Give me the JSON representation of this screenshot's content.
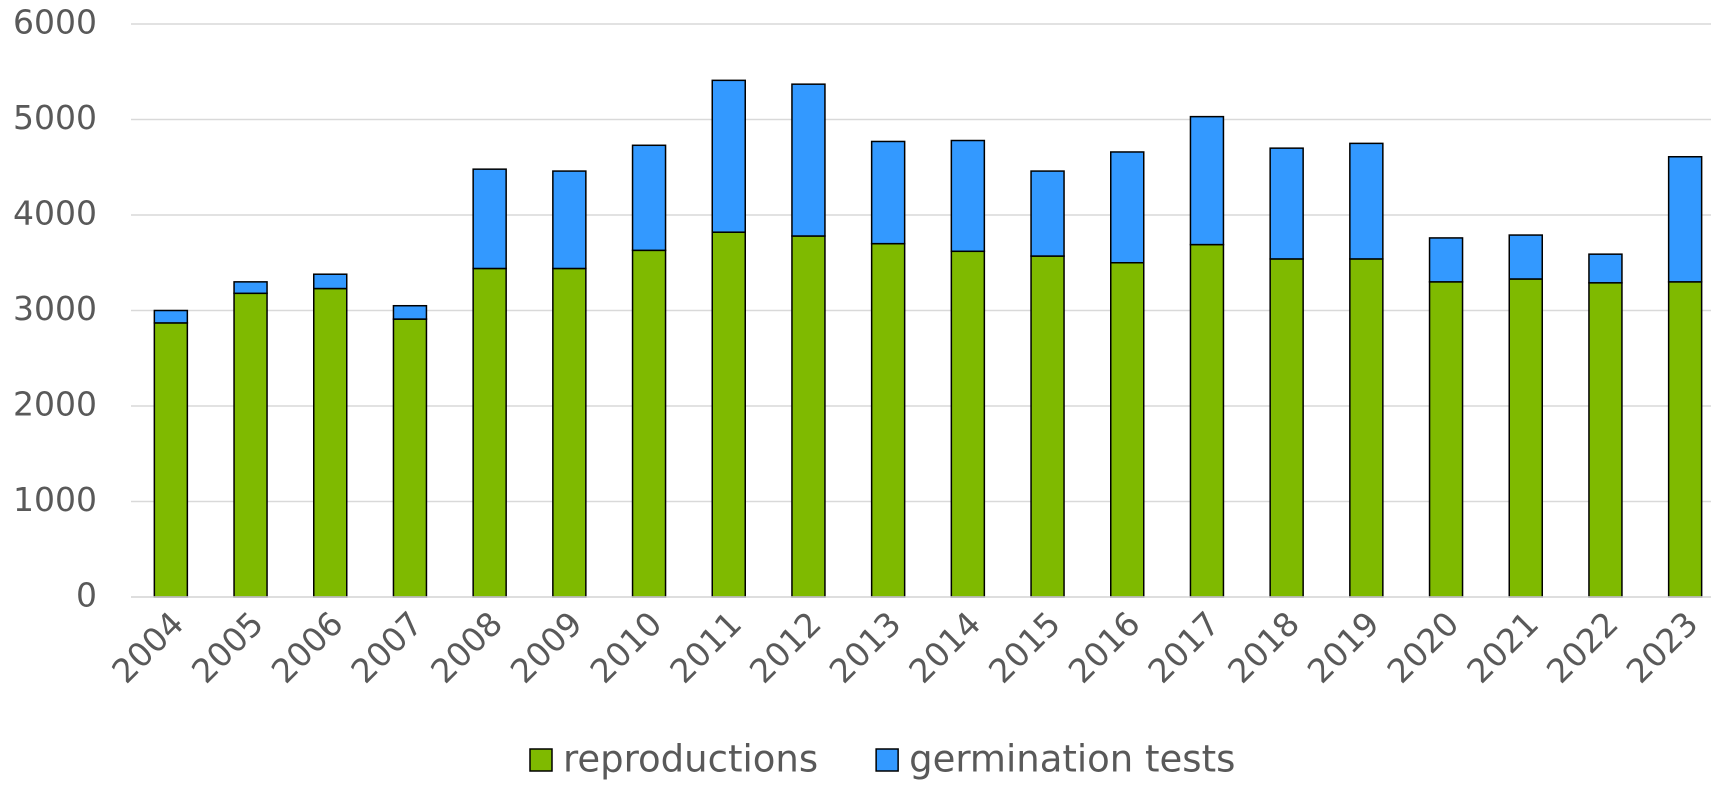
{
  "chart_data": {
    "type": "stacked_bar",
    "categories": [
      "2004",
      "2005",
      "2006",
      "2007",
      "2008",
      "2009",
      "2010",
      "2011",
      "2012",
      "2013",
      "2014",
      "2015",
      "2016",
      "2017",
      "2018",
      "2019",
      "2020",
      "2021",
      "2022",
      "2023"
    ],
    "series": [
      {
        "name": "reproductions",
        "color": "#7fba00",
        "values": [
          2870,
          3180,
          3230,
          2910,
          3440,
          3440,
          3630,
          3820,
          3780,
          3700,
          3620,
          3570,
          3500,
          3690,
          3540,
          3540,
          3300,
          3330,
          3290,
          3300
        ]
      },
      {
        "name": "germination tests",
        "color": "#3399ff",
        "values": [
          130,
          120,
          150,
          140,
          1040,
          1020,
          1100,
          1590,
          1590,
          1070,
          1160,
          890,
          1160,
          1340,
          1160,
          1210,
          460,
          460,
          300,
          1310
        ]
      }
    ],
    "ylim": [
      0,
      6000
    ],
    "yticks": [
      0,
      1000,
      2000,
      3000,
      4000,
      5000,
      6000
    ],
    "grid": true,
    "legend": "bottom"
  }
}
